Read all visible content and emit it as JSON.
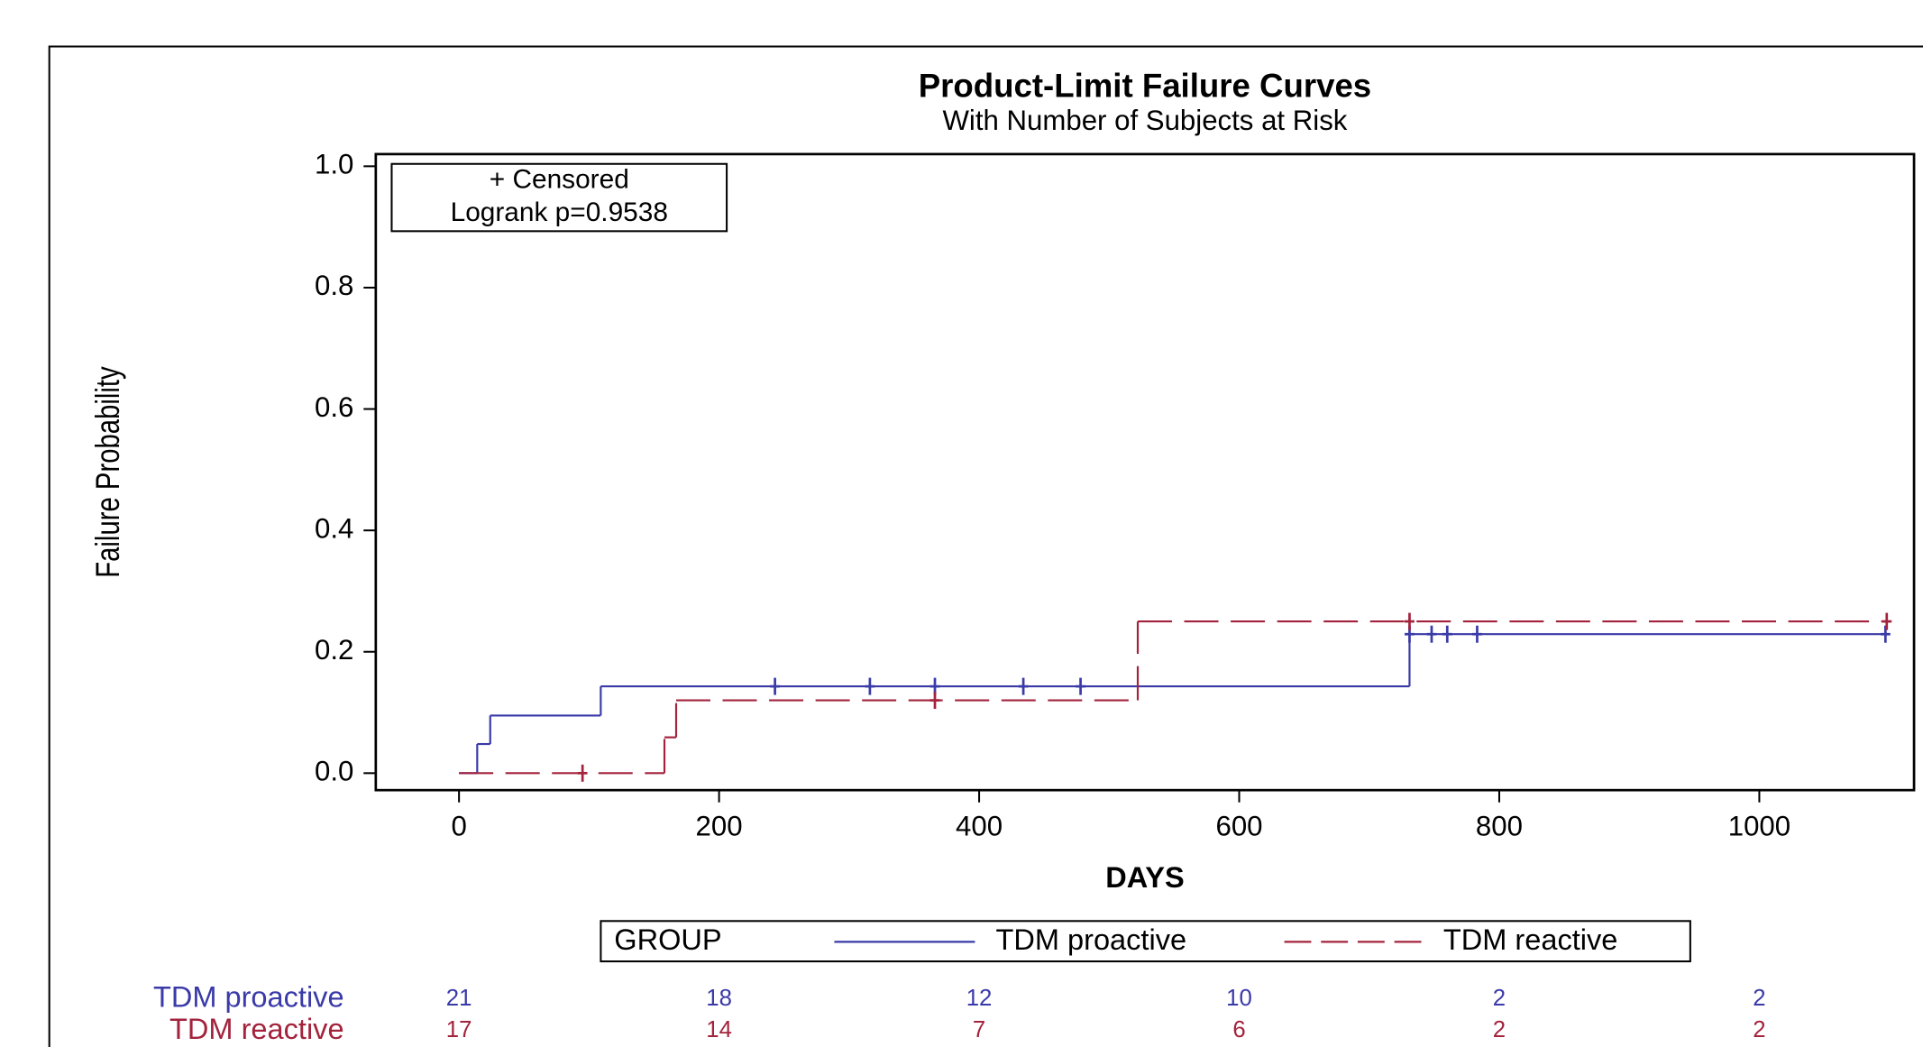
{
  "chart_data": {
    "type": "step",
    "title": "Product-Limit Failure Curves",
    "subtitle": "With Number of Subjects at Risk",
    "x_label": "DAYS",
    "y_label": "Failure Probability",
    "xlim": [
      -64,
      1119
    ],
    "ylim": [
      -0.028,
      1.02
    ],
    "xticks": [
      0,
      200,
      400,
      600,
      800,
      1000
    ],
    "yticks": [
      {
        "value": 0,
        "label": "0.0"
      },
      {
        "value": 0.2,
        "label": "0.2"
      },
      {
        "value": 0.4,
        "label": "0.4"
      },
      {
        "value": 0.6,
        "label": "0.6"
      },
      {
        "value": 0.8,
        "label": "0.8"
      },
      {
        "value": 1.0,
        "label": "1.0"
      }
    ],
    "annotations": [
      "+ Censored",
      "Logrank p=0.9538"
    ],
    "legend_title": "GROUP",
    "series": [
      {
        "name": "TDM proactive",
        "color": "#3a3aa8",
        "dash": false,
        "x": [
          0,
          14,
          24,
          109,
          731,
          1100
        ],
        "values": [
          0,
          0.048,
          0.095,
          0.143,
          0.229,
          0.229
        ],
        "censored": {
          "x": [
            243,
            316,
            366,
            434,
            478,
            731,
            748,
            760,
            783,
            1097
          ],
          "values": [
            0.143,
            0.143,
            0.143,
            0.143,
            0.143,
            0.229,
            0.229,
            0.229,
            0.229,
            0.229
          ]
        },
        "at_risk": [
          21,
          18,
          12,
          10,
          2,
          2
        ]
      },
      {
        "name": "TDM reactive",
        "color": "#a3233c",
        "dash": true,
        "x": [
          0,
          158,
          167,
          522,
          1100
        ],
        "values": [
          0,
          0.059,
          0.12,
          0.25,
          0.25
        ],
        "censored": {
          "x": [
            95,
            366,
            731,
            1098
          ],
          "values": [
            0,
            0.12,
            0.25,
            0.25
          ]
        },
        "at_risk": [
          17,
          14,
          7,
          6,
          2,
          2
        ]
      }
    ]
  }
}
